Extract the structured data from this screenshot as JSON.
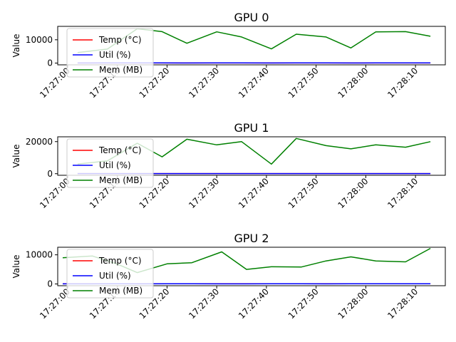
{
  "chart_data": [
    {
      "type": "line",
      "title": "GPU 0",
      "xlabel": "",
      "ylabel": "Value",
      "ylim": [
        -750,
        15750
      ],
      "yticks": [
        0,
        10000
      ],
      "y_tick_labels": [
        "0",
        "10000"
      ],
      "x_range": [
        "17:26:58",
        "17:28:16"
      ],
      "x_ticks": [
        "17:27:00",
        "17:27:10",
        "17:27:20",
        "17:27:30",
        "17:27:40",
        "17:27:50",
        "17:28:00",
        "17:28:10"
      ],
      "x": [
        "17:27:02",
        "17:27:08",
        "17:27:14",
        "17:27:19",
        "17:27:24",
        "17:27:30",
        "17:27:35",
        "17:27:41",
        "17:27:46",
        "17:27:52",
        "17:27:57",
        "17:28:02",
        "17:28:08",
        "17:28:13"
      ],
      "series": [
        {
          "name": "Temp (°C)",
          "color": "#ff0000",
          "values": [
            55,
            56,
            57,
            58,
            57,
            58,
            57,
            56,
            57,
            58,
            57,
            58,
            57,
            58
          ]
        },
        {
          "name": "Util (%)",
          "color": "#0000ff",
          "values": [
            40,
            60,
            80,
            70,
            50,
            75,
            65,
            45,
            70,
            60,
            50,
            70,
            75,
            65
          ]
        },
        {
          "name": "Mem (MB)",
          "color": "#008000",
          "values": [
            4500,
            6000,
            14700,
            13500,
            8500,
            13400,
            11200,
            6100,
            12400,
            11200,
            6500,
            13400,
            13500,
            11500
          ]
        }
      ],
      "legend": "upper-left",
      "grid": false
    },
    {
      "type": "line",
      "title": "GPU 1",
      "xlabel": "",
      "ylabel": "Value",
      "ylim": [
        -1000,
        23000
      ],
      "yticks": [
        0,
        20000
      ],
      "y_tick_labels": [
        "0",
        "20000"
      ],
      "x_range": [
        "17:26:58",
        "17:28:16"
      ],
      "x_ticks": [
        "17:27:00",
        "17:27:10",
        "17:27:20",
        "17:27:30",
        "17:27:40",
        "17:27:50",
        "17:28:00",
        "17:28:10"
      ],
      "x": [
        "17:27:02",
        "17:27:08",
        "17:27:14",
        "17:27:19",
        "17:27:24",
        "17:27:30",
        "17:27:35",
        "17:27:41",
        "17:27:46",
        "17:27:52",
        "17:27:57",
        "17:28:02",
        "17:28:08",
        "17:28:13"
      ],
      "series": [
        {
          "name": "Temp (°C)",
          "color": "#ff0000",
          "values": [
            60,
            61,
            62,
            61,
            60,
            62,
            61,
            60,
            61,
            62,
            61,
            60,
            62,
            61
          ]
        },
        {
          "name": "Util (%)",
          "color": "#0000ff",
          "values": [
            50,
            70,
            85,
            80,
            60,
            75,
            55,
            85,
            70,
            65,
            60,
            75,
            80,
            70
          ]
        },
        {
          "name": "Mem (MB)",
          "color": "#008000",
          "values": [
            6000,
            8000,
            19000,
            10500,
            21500,
            18000,
            20000,
            6000,
            22000,
            17500,
            15500,
            18000,
            16500,
            20000
          ]
        }
      ],
      "legend": "upper-left",
      "grid": false
    },
    {
      "type": "line",
      "title": "GPU 2",
      "xlabel": "",
      "ylabel": "Value",
      "ylim": [
        -600,
        12600
      ],
      "yticks": [
        0,
        10000
      ],
      "y_tick_labels": [
        "0",
        "10000"
      ],
      "x_range": [
        "17:26:58",
        "17:28:16"
      ],
      "x_ticks": [
        "17:27:00",
        "17:27:10",
        "17:27:20",
        "17:27:30",
        "17:27:40",
        "17:27:50",
        "17:28:00",
        "17:28:10"
      ],
      "x": [
        "17:26:59",
        "17:27:05",
        "17:27:10",
        "17:27:14",
        "17:27:20",
        "17:27:25",
        "17:27:31",
        "17:27:36",
        "17:27:41",
        "17:27:47",
        "17:27:52",
        "17:27:57",
        "17:28:02",
        "17:28:08",
        "17:28:13"
      ],
      "series": [
        {
          "name": "Temp (°C)",
          "color": "#ff0000",
          "values": [
            52,
            53,
            54,
            55,
            54,
            53,
            55,
            54,
            53,
            54,
            55,
            54,
            53,
            54,
            55
          ]
        },
        {
          "name": "Util (%)",
          "color": "#0000ff",
          "values": [
            35,
            45,
            55,
            40,
            50,
            60,
            45,
            40,
            55,
            50,
            45,
            60,
            55,
            50,
            65
          ]
        },
        {
          "name": "Mem (MB)",
          "color": "#008000",
          "values": [
            9000,
            9600,
            6800,
            3900,
            6900,
            7300,
            11000,
            5000,
            5900,
            5800,
            7900,
            9300,
            7900,
            7600,
            12200
          ]
        }
      ],
      "legend": "upper-left",
      "grid": false
    }
  ]
}
